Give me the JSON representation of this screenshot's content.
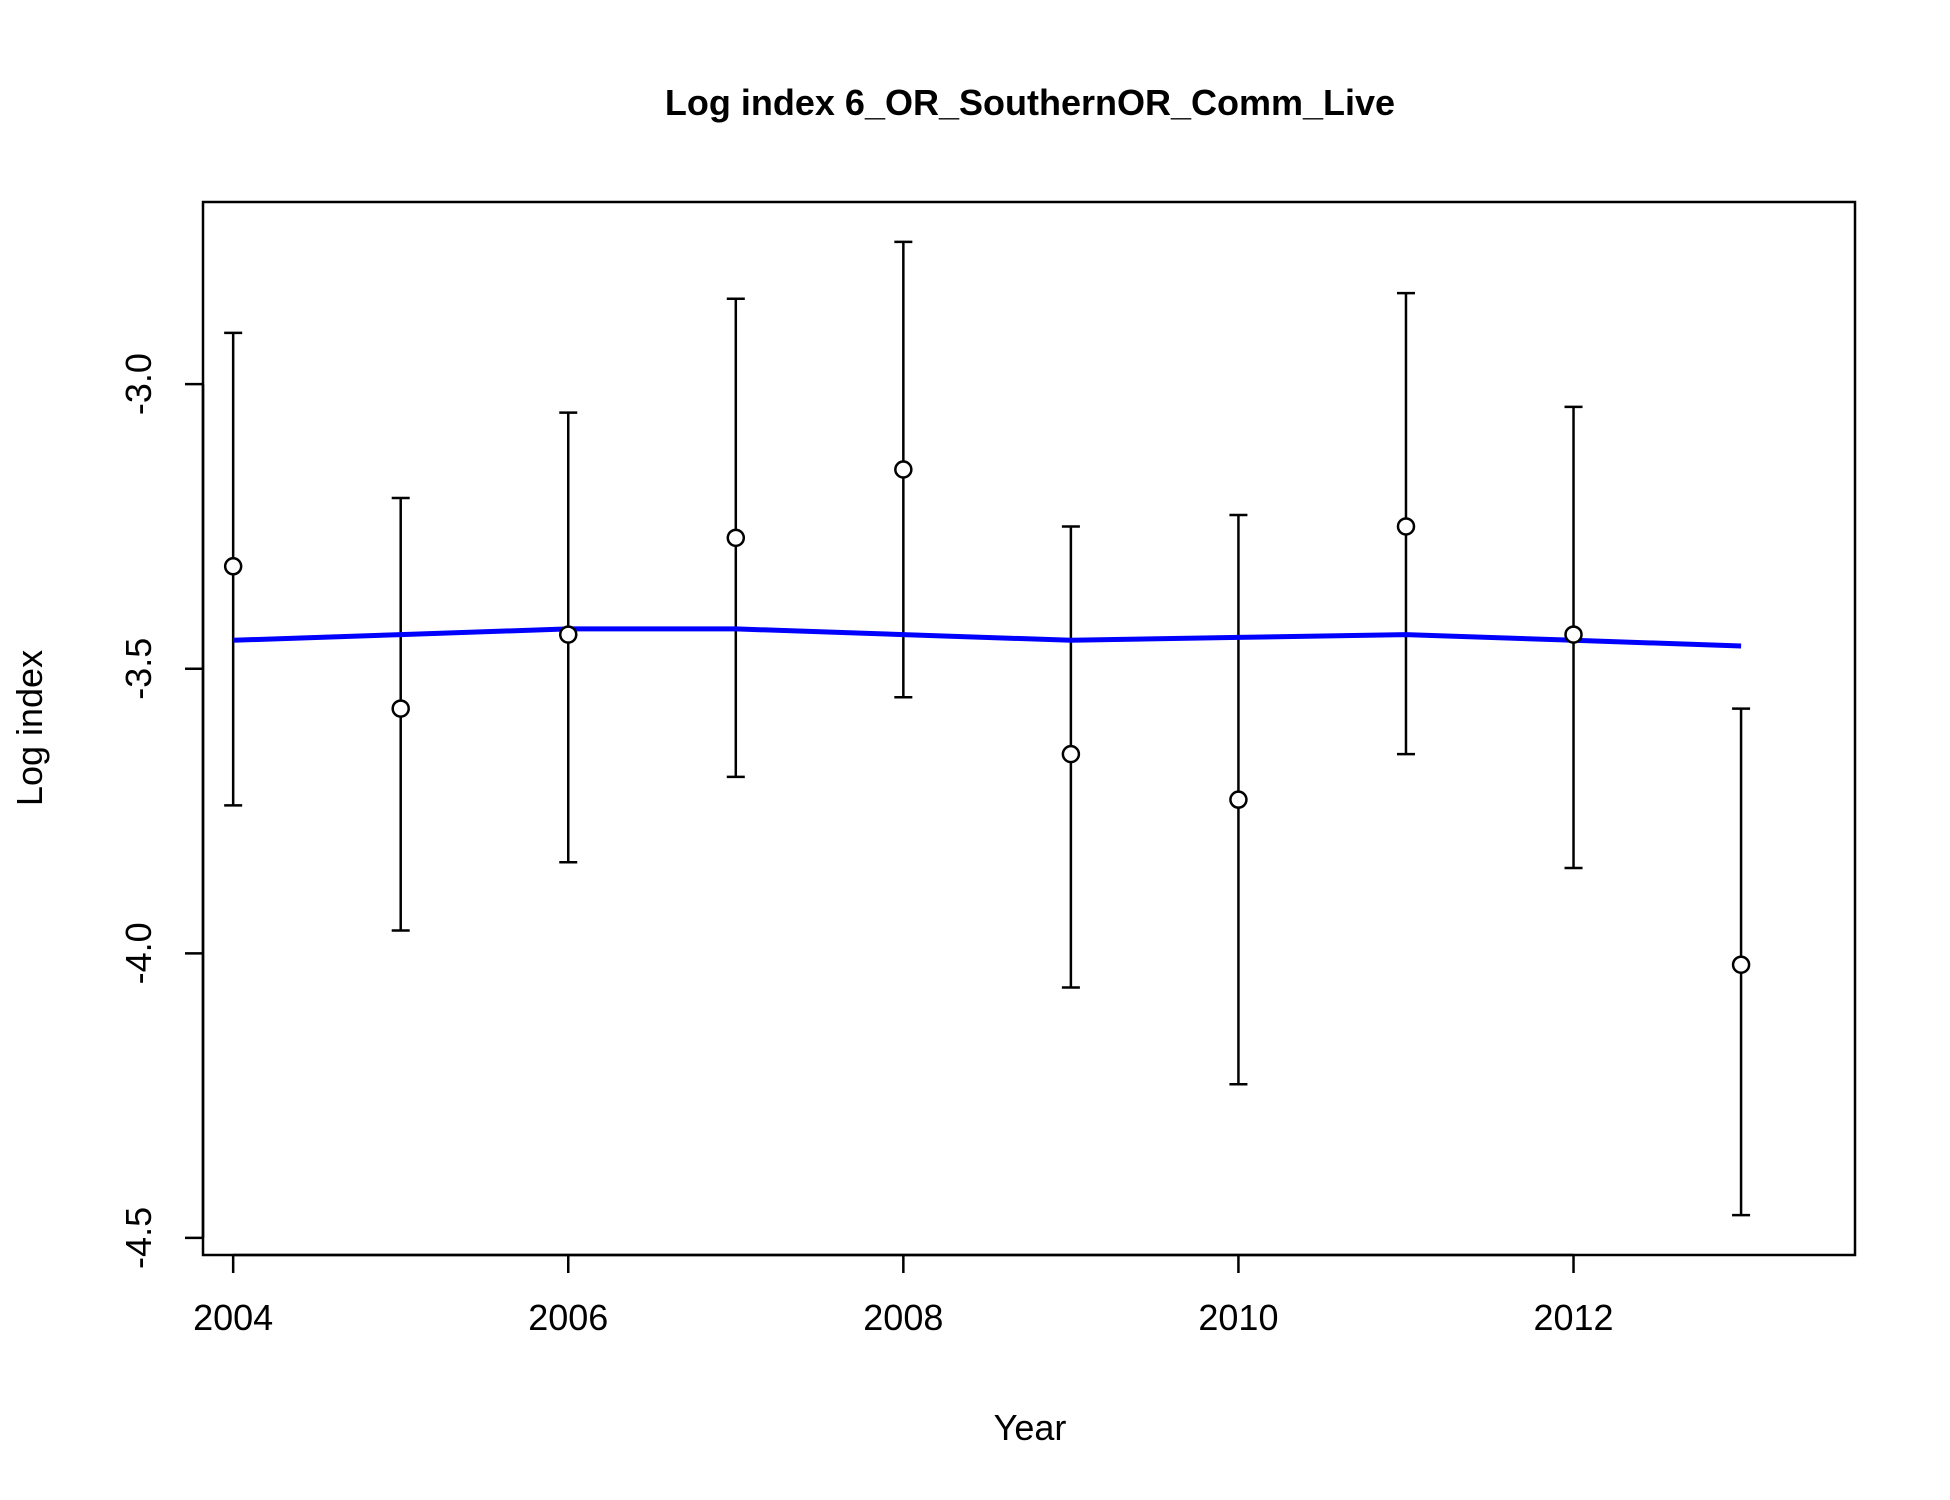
{
  "chart_data": {
    "type": "scatter",
    "title": "Log index 6_OR_SouthernOR_Comm_Live",
    "xlabel": "Year",
    "ylabel": "Log index",
    "xlim": [
      2003.82,
      2013.68
    ],
    "ylim": [
      -4.53,
      -2.68
    ],
    "x_ticks": [
      2004,
      2006,
      2008,
      2010,
      2012
    ],
    "x_tick_labels": [
      "2004",
      "2006",
      "2008",
      "2010",
      "2012"
    ],
    "y_ticks": [
      -3.0,
      -3.5,
      -4.0,
      -4.5
    ],
    "y_tick_labels": [
      "-3.0",
      "-3.5",
      "-4.0",
      "-4.5"
    ],
    "grid": false,
    "legend": "none",
    "observed": {
      "x": [
        2004,
        2005,
        2006,
        2007,
        2008,
        2009,
        2010,
        2011,
        2012,
        2013
      ],
      "y": [
        -3.32,
        -3.57,
        -3.44,
        -3.27,
        -3.15,
        -3.65,
        -3.73,
        -3.25,
        -3.44,
        -4.02
      ],
      "lower": [
        -3.74,
        -3.96,
        -3.84,
        -3.69,
        -3.55,
        -4.06,
        -4.23,
        -3.65,
        -3.85,
        -4.46
      ],
      "upper": [
        -2.91,
        -3.2,
        -3.05,
        -2.85,
        -2.75,
        -3.25,
        -3.23,
        -2.84,
        -3.04,
        -3.57
      ]
    },
    "expected": {
      "x": [
        2004,
        2005,
        2006,
        2007,
        2008,
        2009,
        2010,
        2011,
        2012,
        2013
      ],
      "y": [
        -3.45,
        -3.44,
        -3.43,
        -3.43,
        -3.44,
        -3.45,
        -3.445,
        -3.44,
        -3.45,
        -3.46
      ]
    },
    "colors": {
      "expected_line": "#0000ff",
      "points": "#000000",
      "error_bars": "#000000"
    }
  }
}
